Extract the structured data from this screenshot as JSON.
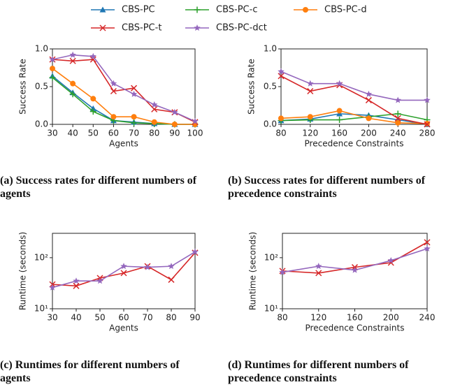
{
  "chart_data": [
    {
      "type": "line",
      "caption": "(a) Success rates for different numbers of agents",
      "x_label": "Agents",
      "y_label": "Success Rate",
      "x": [
        30,
        40,
        50,
        60,
        70,
        80,
        90,
        100
      ],
      "xlim": [
        30,
        100
      ],
      "xticks": [
        30,
        40,
        50,
        60,
        70,
        80,
        90,
        100
      ],
      "ylim": [
        0,
        1
      ],
      "yticks": [
        {
          "value": 0,
          "label": "0.0"
        },
        {
          "value": 0.5,
          "label": "0.5"
        },
        {
          "value": 1,
          "label": "1.0"
        }
      ],
      "yscale": "linear",
      "grid": false,
      "series": [
        {
          "name": "CBS-PC",
          "color": "#1f77b4",
          "marker": "triangle",
          "values": [
            0.64,
            0.42,
            0.21,
            0.05,
            0.03,
            0.01,
            0.0,
            0.0
          ]
        },
        {
          "name": "CBS-PC-c",
          "color": "#2ca02c",
          "marker": "plus",
          "values": [
            0.62,
            0.4,
            0.17,
            0.05,
            0.02,
            0.01,
            0.0,
            0.0
          ]
        },
        {
          "name": "CBS-PC-d",
          "color": "#ff7f0e",
          "marker": "circle",
          "values": [
            0.74,
            0.54,
            0.34,
            0.1,
            0.1,
            0.03,
            0.0,
            0.0
          ]
        },
        {
          "name": "CBS-PC-t",
          "color": "#d62728",
          "marker": "x",
          "values": [
            0.86,
            0.84,
            0.86,
            0.44,
            0.48,
            0.2,
            0.16,
            0.03
          ]
        },
        {
          "name": "CBS-PC-dct",
          "color": "#9467bd",
          "marker": "star",
          "values": [
            0.86,
            0.92,
            0.9,
            0.54,
            0.4,
            0.26,
            0.16,
            0.04
          ]
        }
      ]
    },
    {
      "type": "line",
      "caption": "(b) Success rates for different numbers of precedence constraints",
      "x_label": "Precedence Constraints",
      "y_label": "Success Rate",
      "x": [
        80,
        120,
        160,
        200,
        240,
        280
      ],
      "xlim": [
        80,
        280
      ],
      "xticks": [
        80,
        120,
        160,
        200,
        240,
        280
      ],
      "ylim": [
        0,
        1
      ],
      "yticks": [
        {
          "value": 0,
          "label": "0.0"
        },
        {
          "value": 0.5,
          "label": "0.5"
        },
        {
          "value": 1,
          "label": "1.0"
        }
      ],
      "yscale": "linear",
      "grid": false,
      "series": [
        {
          "name": "CBS-PC",
          "color": "#1f77b4",
          "marker": "triangle",
          "values": [
            0.05,
            0.07,
            0.14,
            0.12,
            0.06,
            0.0
          ]
        },
        {
          "name": "CBS-PC-c",
          "color": "#2ca02c",
          "marker": "plus",
          "values": [
            0.05,
            0.06,
            0.06,
            0.1,
            0.14,
            0.06
          ]
        },
        {
          "name": "CBS-PC-d",
          "color": "#ff7f0e",
          "marker": "circle",
          "values": [
            0.08,
            0.1,
            0.18,
            0.08,
            0.02,
            0.01
          ]
        },
        {
          "name": "CBS-PC-t",
          "color": "#d62728",
          "marker": "x",
          "values": [
            0.64,
            0.44,
            0.52,
            0.32,
            0.08,
            0.0
          ]
        },
        {
          "name": "CBS-PC-dct",
          "color": "#9467bd",
          "marker": "star",
          "values": [
            0.7,
            0.54,
            0.54,
            0.4,
            0.32,
            0.32
          ]
        }
      ]
    },
    {
      "type": "line",
      "caption": "(c) Runtimes for different numbers of agents",
      "x_label": "Agents",
      "y_label": "Runtime (seconds)",
      "x": [
        30,
        40,
        50,
        60,
        70,
        80,
        90
      ],
      "xlim": [
        30,
        90
      ],
      "xticks": [
        30,
        40,
        50,
        60,
        70,
        80,
        90
      ],
      "ylim": [
        10,
        300
      ],
      "yticks": [
        {
          "value": 10,
          "label": "10¹"
        },
        {
          "value": 100,
          "label": "10²"
        }
      ],
      "yscale": "log",
      "grid": false,
      "series": [
        {
          "name": "CBS-PC-t",
          "color": "#d62728",
          "marker": "x",
          "values": [
            30,
            28,
            40,
            50,
            68,
            37,
            125
          ]
        },
        {
          "name": "CBS-PC-dct",
          "color": "#9467bd",
          "marker": "star",
          "values": [
            26,
            35,
            35,
            68,
            65,
            68,
            130
          ]
        }
      ]
    },
    {
      "type": "line",
      "caption": "(d) Runtimes for different numbers of precedence constraints",
      "x_label": "Precedence Constraints",
      "y_label": "Runtime (seconds)",
      "x": [
        80,
        120,
        160,
        200,
        240
      ],
      "xlim": [
        80,
        240
      ],
      "xticks": [
        80,
        120,
        160,
        200,
        240
      ],
      "ylim": [
        10,
        300
      ],
      "yticks": [
        {
          "value": 10,
          "label": "10¹"
        },
        {
          "value": 100,
          "label": "10²"
        }
      ],
      "yscale": "log",
      "grid": false,
      "series": [
        {
          "name": "CBS-PC-t",
          "color": "#d62728",
          "marker": "x",
          "values": [
            55,
            50,
            65,
            80,
            200
          ]
        },
        {
          "name": "CBS-PC-dct",
          "color": "#9467bd",
          "marker": "star",
          "values": [
            52,
            68,
            57,
            88,
            150
          ]
        }
      ]
    }
  ]
}
